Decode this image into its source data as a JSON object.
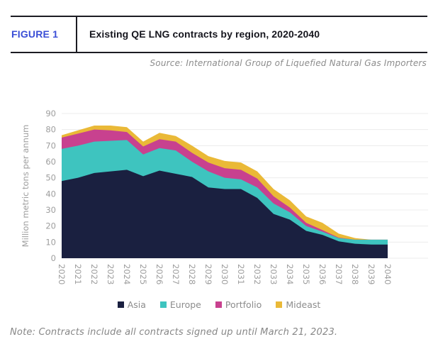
{
  "header": {
    "figure_label": "FIGURE 1",
    "title": "Existing QE LNG contracts by region, 2020-2040"
  },
  "source": "Source: International Group of Liquefied Natural Gas Importers",
  "note": "Note: Contracts include all contracts signed up until March 21, 2023.",
  "colors": {
    "figure_label_blue": "#3a4ed6",
    "title_text": "#16161e",
    "muted_text": "#8c8c8c",
    "axis_text": "#9e9e9e",
    "gridline": "#ececec",
    "asia": "#1a2040",
    "europe": "#3ec4bf",
    "portfolio": "#c8418f",
    "mideast": "#eab937"
  },
  "chart_data": {
    "type": "area",
    "stacked": true,
    "title": "",
    "xlabel": "",
    "ylabel": "Million metric tons per annum",
    "ylim": [
      0,
      90
    ],
    "ytick_step": 10,
    "grid": true,
    "legend_position": "bottom",
    "categories": [
      "2020",
      "2021",
      "2022",
      "2023",
      "2024",
      "2025",
      "2026",
      "2027",
      "2028",
      "2029",
      "2030",
      "2031",
      "2032",
      "2033",
      "2034",
      "2035",
      "2036",
      "2037",
      "2038",
      "2039",
      "2040"
    ],
    "series": [
      {
        "name": "Asia",
        "color": "#1a2040",
        "values": [
          48,
          50,
          53,
          54,
          55,
          51,
          54.5,
          52.5,
          50.5,
          44,
          43,
          43,
          37.5,
          27.5,
          24,
          17,
          14.5,
          10.5,
          9,
          8.5,
          8.5
        ]
      },
      {
        "name": "Europe",
        "color": "#3ec4bf",
        "values": [
          20,
          20,
          19.5,
          19,
          18.5,
          13.5,
          14,
          14.5,
          9.5,
          10,
          7,
          6,
          6.5,
          6.5,
          4.5,
          3,
          2,
          2,
          2.5,
          3,
          3
        ]
      },
      {
        "name": "Portfolio",
        "color": "#c8418f",
        "values": [
          7,
          7.5,
          7.5,
          6.5,
          5,
          5,
          5.5,
          5.5,
          5.5,
          5.5,
          6,
          6,
          5.5,
          4.5,
          3,
          2,
          1,
          0.3,
          0,
          0,
          0
        ]
      },
      {
        "name": "Mideast",
        "color": "#eab937",
        "values": [
          1.5,
          2,
          2.5,
          3,
          3,
          3,
          4,
          3.5,
          4.5,
          4,
          4.5,
          4.5,
          4.5,
          4.5,
          4.5,
          4,
          4.5,
          2.5,
          1,
          0,
          0
        ]
      }
    ]
  }
}
